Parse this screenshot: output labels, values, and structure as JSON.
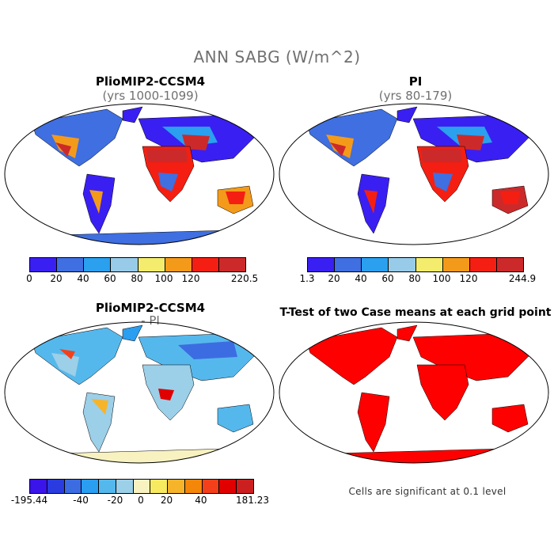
{
  "header": {
    "title": "ANN SABG (W/m^2)"
  },
  "panels": {
    "p1": {
      "title": "PlioMIP2-CCSM4",
      "subtitle": "(yrs 1000-1099)"
    },
    "p2": {
      "title": "PI",
      "subtitle": "(yrs 80-179)"
    },
    "p3": {
      "title": "PlioMIP2-CCSM4",
      "subtitle": "- PI"
    },
    "p4": {
      "title": "T-Test of two Case means at each grid point",
      "note": "Cells are significant at 0.1 level"
    }
  },
  "colorbars": {
    "cb1": {
      "colors": [
        "#3a1ff2",
        "#3f6fe0",
        "#2aa0ee",
        "#97cbe8",
        "#f4ec6c",
        "#f49a1b",
        "#f41f12",
        "#cc2a2a"
      ],
      "labels": [
        "0",
        "20",
        "40",
        "60",
        "80",
        "100",
        "120",
        "220.5"
      ]
    },
    "cb2": {
      "colors": [
        "#3a1ff2",
        "#3f6fe0",
        "#2aa0ee",
        "#97cbe8",
        "#f4ec6c",
        "#f49a1b",
        "#f41f12",
        "#cc2a2a"
      ],
      "labels": [
        "1.3",
        "20",
        "40",
        "60",
        "80",
        "100",
        "120",
        "244.9"
      ]
    },
    "cb3": {
      "colors": [
        "#3a14e8",
        "#2a3ce0",
        "#3c6ce2",
        "#2a9ef0",
        "#55b8ec",
        "#9ccfe8",
        "#f8f2c0",
        "#f8ea60",
        "#f6b42a",
        "#f4860a",
        "#f4401a",
        "#e00000",
        "#cc2020"
      ],
      "labels": [
        "-195.44",
        "-40",
        "-20",
        "0",
        "20",
        "40",
        "181.23"
      ]
    }
  },
  "legend_colors": {
    "significant": "#ff0000",
    "ocean": "#ffffff",
    "coast": "#000000"
  }
}
